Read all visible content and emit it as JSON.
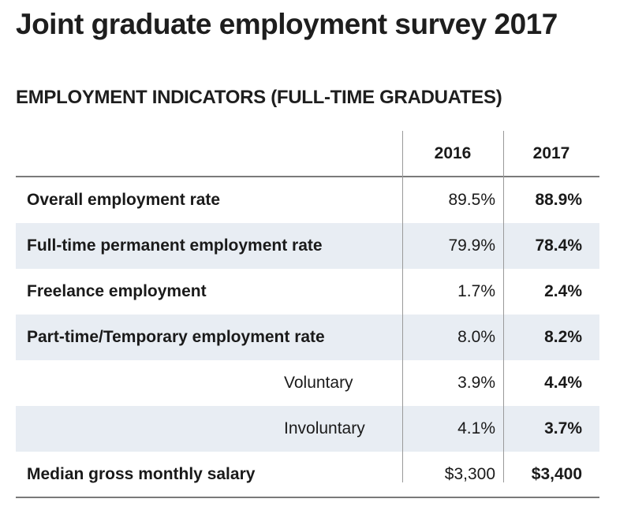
{
  "title": "Joint graduate employment survey 2017",
  "subtitle": "EMPLOYMENT INDICATORS (FULL-TIME GRADUATES)",
  "colors": {
    "shaded_row": "#e8edf3",
    "text": "#1e1e1e",
    "rule": "#7a7a7a"
  },
  "chart_data": {
    "type": "table",
    "title": "Joint graduate employment survey 2017",
    "subtitle": "EMPLOYMENT INDICATORS (FULL-TIME GRADUATES)",
    "columns": [
      "",
      "2016",
      "2017"
    ],
    "rows": [
      {
        "label": "Overall employment rate",
        "v2016": "89.5%",
        "v2017": "88.9%",
        "indent": false,
        "shaded": false
      },
      {
        "label": "Full-time permanent employment rate",
        "v2016": "79.9%",
        "v2017": "78.4%",
        "indent": false,
        "shaded": true
      },
      {
        "label": "Freelance employment",
        "v2016": "1.7%",
        "v2017": "2.4%",
        "indent": false,
        "shaded": false
      },
      {
        "label": "Part-time/Temporary employment rate",
        "v2016": "8.0%",
        "v2017": "8.2%",
        "indent": false,
        "shaded": true
      },
      {
        "label": "Voluntary",
        "v2016": "3.9%",
        "v2017": "4.4%",
        "indent": true,
        "shaded": false
      },
      {
        "label": "Involuntary",
        "v2016": "4.1%",
        "v2017": "3.7%",
        "indent": true,
        "shaded": true
      },
      {
        "label": "Median gross monthly salary",
        "v2016": "$3,300",
        "v2017": "$3,400",
        "indent": false,
        "shaded": false
      }
    ]
  }
}
